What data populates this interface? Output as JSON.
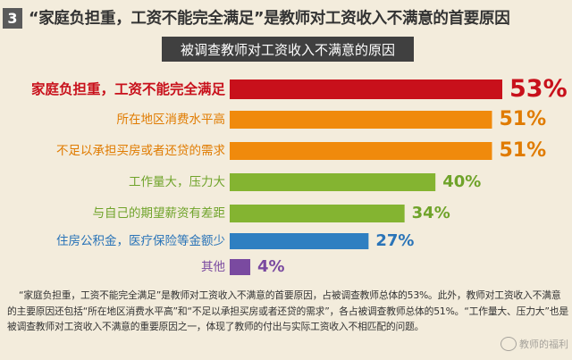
{
  "header": {
    "number": "3",
    "headline": "“家庭负担重，工资不能完全满足”是教师对工资收入不满意的首要原因"
  },
  "chart_data": {
    "type": "bar",
    "orientation": "horizontal",
    "title": "被调查教师对工资收入不满意的原因",
    "categories": [
      "家庭负担重，工资不能完全满足",
      "所在地区消费水平高",
      "不足以承担买房或者还贷的需求",
      "工作量大，压力大",
      "与自己的期望薪资有差距",
      "住房公积金，医疗保险等金额少",
      "其他"
    ],
    "values": [
      53,
      51,
      51,
      40,
      34,
      27,
      4
    ],
    "value_labels": [
      "53%",
      "51%",
      "51%",
      "40%",
      "34%",
      "27%",
      "4%"
    ],
    "colors": [
      "#c8101b",
      "#f08a0c",
      "#f08a0c",
      "#84b431",
      "#84b431",
      "#2f7fc1",
      "#7a4aa0"
    ],
    "label_colors": [
      "#c8101b",
      "#e07b00",
      "#e07b00",
      "#6fa32a",
      "#6fa32a",
      "#2a74b8",
      "#7a4aa0"
    ],
    "unit": "%"
  },
  "footnote": "“家庭负担重，工资不能完全满足”是教师对工资收入不满意的首要原因，占被调查教师总体的53%。此外，教师对工资收入不满意的主要原因还包括“所在地区消费水平高”和“不足以承担买房或者还贷的需求”，各占被调查教师总体的51%。“工作量大、压力大”也是被调查教师对工资收入不满意的重要原因之一，体现了教师的付出与实际工资收入不相匹配的问题。",
  "watermark": {
    "text": "教师的福利"
  }
}
